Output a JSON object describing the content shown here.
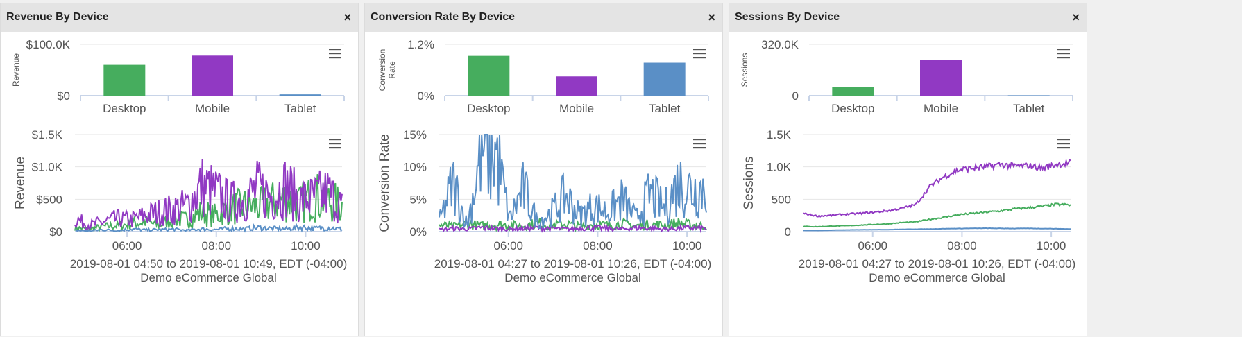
{
  "panels": [
    {
      "title": "Revenue By Device",
      "close_label": "×",
      "bar": {
        "type": "bar",
        "categories": [
          "Desktop",
          "Mobile",
          "Tablet"
        ],
        "values": [
          60000,
          78000,
          2500
        ],
        "colors": [
          "#46ad5e",
          "#9139c3",
          "#5a8fc6"
        ],
        "ylabel": "Revenue",
        "ylim": [
          0,
          100000
        ],
        "yticks": [
          {
            "v": 0,
            "label": "$0"
          },
          {
            "v": 100000,
            "label": "$100.0K"
          }
        ]
      },
      "line": {
        "type": "line",
        "ylabel": "Revenue",
        "ylim": [
          0,
          1500
        ],
        "yticks": [
          {
            "v": 0,
            "label": "$0"
          },
          {
            "v": 500,
            "label": "$500"
          },
          {
            "v": 1000,
            "label": "$1.0K"
          },
          {
            "v": 1500,
            "label": "$1.5K"
          }
        ],
        "xrange": [
          "2019-08-01 04:50",
          "2019-08-01 10:49"
        ],
        "xticks": [
          {
            "t": "2019-08-01 06:00",
            "label": "06:00"
          },
          {
            "t": "2019-08-01 08:00",
            "label": "08:00"
          },
          {
            "t": "2019-08-01 10:00",
            "label": "10:00"
          }
        ],
        "series": [
          {
            "color": "#46ad5e",
            "values": [
              60,
              40,
              80,
              90,
              120,
              150,
              100,
              200,
              180,
              300,
              250,
              350,
              400,
              380,
              450,
              500,
              420,
              550,
              480,
              400
            ]
          },
          {
            "color": "#9139c3",
            "values": [
              200,
              100,
              150,
              200,
              180,
              250,
              300,
              350,
              400,
              700,
              600,
              450,
              500,
              650,
              550,
              700,
              480,
              520,
              600,
              380
            ]
          },
          {
            "color": "#5a8fc6",
            "values": [
              20,
              10,
              30,
              15,
              40,
              25,
              30,
              35,
              20,
              40,
              30,
              50,
              40,
              60,
              50,
              40,
              70,
              50,
              60,
              40
            ]
          }
        ],
        "caption_range": "2019-08-01 04:50 to 2019-08-01 10:49, EDT (-04:00)",
        "caption_site": "Demo eCommerce Global"
      }
    },
    {
      "title": "Conversion Rate By Device",
      "close_label": "×",
      "bar": {
        "type": "bar",
        "categories": [
          "Desktop",
          "Mobile",
          "Tablet"
        ],
        "values": [
          0.93,
          0.45,
          0.77
        ],
        "colors": [
          "#46ad5e",
          "#9139c3",
          "#5a8fc6"
        ],
        "ylabel": "Conversion Rate",
        "ylim": [
          0,
          1.2
        ],
        "yticks": [
          {
            "v": 0,
            "label": "0%"
          },
          {
            "v": 1.2,
            "label": "1.2%"
          }
        ]
      },
      "line": {
        "type": "line",
        "ylabel": "Conversion Rate",
        "ylim": [
          0,
          15
        ],
        "yticks": [
          {
            "v": 0,
            "label": "0%"
          },
          {
            "v": 5,
            "label": "5%"
          },
          {
            "v": 10,
            "label": "10%"
          },
          {
            "v": 15,
            "label": "15%"
          }
        ],
        "xrange": [
          "2019-08-01 04:27",
          "2019-08-01 10:26"
        ],
        "xticks": [
          {
            "t": "2019-08-01 06:00",
            "label": "06:00"
          },
          {
            "t": "2019-08-01 08:00",
            "label": "08:00"
          },
          {
            "t": "2019-08-01 10:00",
            "label": "10:00"
          }
        ],
        "series": [
          {
            "color": "#46ad5e",
            "values": [
              1.0,
              0.8,
              1.2,
              0.9,
              1.1,
              1.0,
              0.9,
              1.3,
              1.0,
              1.2,
              0.8,
              1.1,
              1.0,
              1.2,
              0.9,
              1.1,
              1.0,
              1.3,
              1.0,
              0.9
            ]
          },
          {
            "color": "#9139c3",
            "values": [
              0.3,
              0.5,
              0.4,
              0.6,
              0.5,
              0.4,
              0.5,
              0.6,
              0.5,
              0.4,
              0.5,
              0.6,
              0.5,
              0.4,
              0.6,
              0.5,
              0.4,
              0.5,
              0.6,
              0.5
            ]
          },
          {
            "color": "#5a8fc6",
            "values": [
              1.5,
              7.5,
              1.0,
              12.5,
              12.5,
              2.0,
              6.5,
              1.5,
              3.0,
              5.5,
              2.5,
              4.0,
              3.0,
              5.0,
              2.0,
              6.0,
              3.5,
              7.5,
              6.5,
              7.0
            ]
          }
        ],
        "caption_range": "2019-08-01 04:27 to 2019-08-01 10:26, EDT (-04:00)",
        "caption_site": "Demo eCommerce Global"
      }
    },
    {
      "title": "Sessions By Device",
      "close_label": "×",
      "bar": {
        "type": "bar",
        "categories": [
          "Desktop",
          "Mobile",
          "Tablet"
        ],
        "values": [
          55000,
          222000,
          2000
        ],
        "colors": [
          "#46ad5e",
          "#9139c3",
          "#5a8fc6"
        ],
        "ylabel": "Sessions",
        "ylim": [
          0,
          320000
        ],
        "yticks": [
          {
            "v": 0,
            "label": "0"
          },
          {
            "v": 320000,
            "label": "320.0K"
          }
        ]
      },
      "line": {
        "type": "line",
        "ylabel": "Sessions",
        "ylim": [
          0,
          1500
        ],
        "yticks": [
          {
            "v": 0,
            "label": "0"
          },
          {
            "v": 500,
            "label": "500"
          },
          {
            "v": 1000,
            "label": "1.0K"
          },
          {
            "v": 1500,
            "label": "1.5K"
          }
        ],
        "xrange": [
          "2019-08-01 04:27",
          "2019-08-01 10:26"
        ],
        "xticks": [
          {
            "t": "2019-08-01 06:00",
            "label": "06:00"
          },
          {
            "t": "2019-08-01 08:00",
            "label": "08:00"
          },
          {
            "t": "2019-08-01 10:00",
            "label": "10:00"
          }
        ],
        "series": [
          {
            "color": "#46ad5e",
            "values": [
              80,
              75,
              85,
              90,
              100,
              110,
              120,
              140,
              150,
              190,
              220,
              260,
              280,
              300,
              320,
              350,
              370,
              390,
              420,
              410
            ]
          },
          {
            "color": "#9139c3",
            "values": [
              280,
              240,
              250,
              270,
              280,
              300,
              320,
              360,
              420,
              700,
              850,
              950,
              980,
              1000,
              1040,
              1010,
              1020,
              980,
              1040,
              1060
            ]
          },
          {
            "color": "#5a8fc6",
            "values": [
              20,
              18,
              22,
              25,
              28,
              30,
              30,
              35,
              38,
              40,
              45,
              48,
              50,
              52,
              50,
              48,
              50,
              47,
              45,
              40
            ]
          }
        ],
        "caption_range": "2019-08-01 04:27 to 2019-08-01 10:26, EDT (-04:00)",
        "caption_site": "Demo eCommerce Global"
      }
    }
  ],
  "chart_data": [
    {
      "type": "bar",
      "title": "Revenue By Device",
      "categories": [
        "Desktop",
        "Mobile",
        "Tablet"
      ],
      "values": [
        60000,
        78000,
        2500
      ],
      "ylabel": "Revenue",
      "ylim": [
        0,
        100000
      ]
    },
    {
      "type": "line",
      "title": "Revenue By Device",
      "ylabel": "Revenue",
      "ylim": [
        0,
        1500
      ],
      "xlabel": "2019-08-01 04:50 to 2019-08-01 10:49, EDT (-04:00)"
    },
    {
      "type": "bar",
      "title": "Conversion Rate By Device",
      "categories": [
        "Desktop",
        "Mobile",
        "Tablet"
      ],
      "values": [
        0.93,
        0.45,
        0.77
      ],
      "ylabel": "Conversion Rate",
      "ylim": [
        0,
        1.2
      ]
    },
    {
      "type": "line",
      "title": "Conversion Rate By Device",
      "ylabel": "Conversion Rate",
      "ylim": [
        0,
        15
      ],
      "xlabel": "2019-08-01 04:27 to 2019-08-01 10:26, EDT (-04:00)"
    },
    {
      "type": "bar",
      "title": "Sessions By Device",
      "categories": [
        "Desktop",
        "Mobile",
        "Tablet"
      ],
      "values": [
        55000,
        222000,
        2000
      ],
      "ylabel": "Sessions",
      "ylim": [
        0,
        320000
      ]
    },
    {
      "type": "line",
      "title": "Sessions By Device",
      "ylabel": "Sessions",
      "ylim": [
        0,
        1500
      ],
      "xlabel": "2019-08-01 04:27 to 2019-08-01 10:26, EDT (-04:00)"
    }
  ]
}
